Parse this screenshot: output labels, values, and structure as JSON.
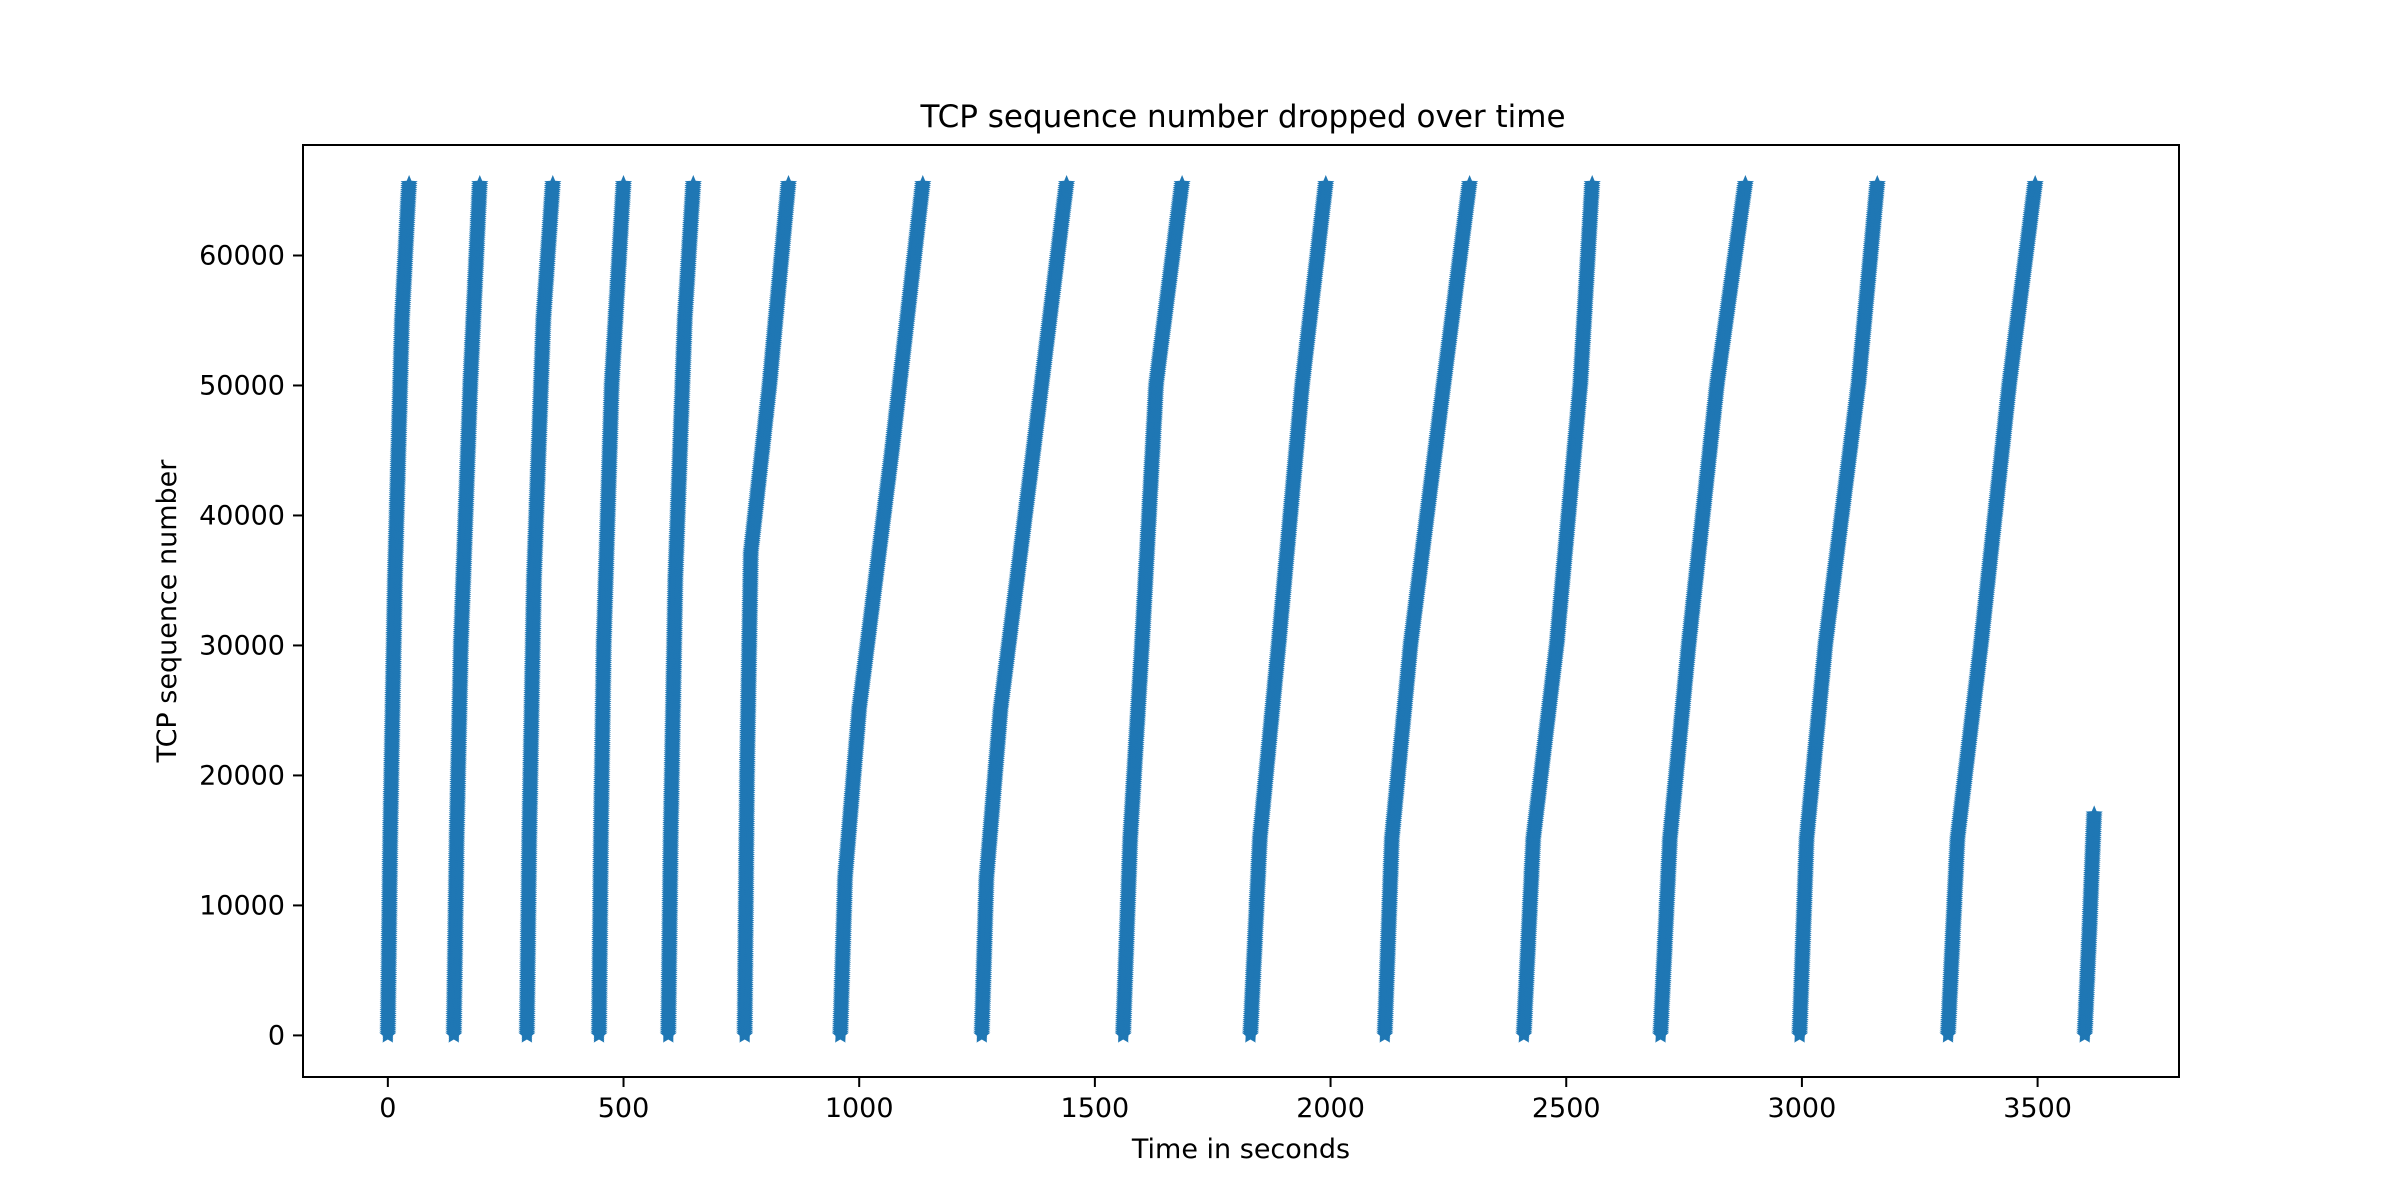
{
  "chart_data": {
    "type": "scatter",
    "title": "TCP sequence number dropped over time",
    "xlabel": "Time in seconds",
    "ylabel": "TCP sequence number",
    "xlim": [
      -180,
      3800
    ],
    "ylim": [
      -3200,
      68500
    ],
    "xticks": [
      0,
      500,
      1000,
      1500,
      2000,
      2500,
      3000,
      3500
    ],
    "xtick_labels": [
      "0",
      "500",
      "1000",
      "1500",
      "2000",
      "2500",
      "3000",
      "3500"
    ],
    "yticks": [
      0,
      10000,
      20000,
      30000,
      40000,
      50000,
      60000
    ],
    "ytick_labels": [
      "0",
      "10000",
      "20000",
      "30000",
      "40000",
      "50000",
      "60000"
    ],
    "grid": false,
    "marker": "star",
    "color": "#1f77b4",
    "series": [
      {
        "values": [
          [
            0,
            0
          ],
          [
            5,
            15000
          ],
          [
            15,
            35000
          ],
          [
            30,
            55000
          ],
          [
            45,
            65500
          ]
        ]
      },
      {
        "values": [
          [
            140,
            0
          ],
          [
            146,
            15000
          ],
          [
            155,
            30000
          ],
          [
            175,
            50000
          ],
          [
            195,
            65500
          ]
        ]
      },
      {
        "values": [
          [
            295,
            0
          ],
          [
            300,
            15000
          ],
          [
            310,
            35000
          ],
          [
            330,
            55000
          ],
          [
            350,
            65500
          ]
        ]
      },
      {
        "values": [
          [
            448,
            0
          ],
          [
            452,
            15000
          ],
          [
            458,
            30000
          ],
          [
            475,
            50000
          ],
          [
            500,
            65500
          ]
        ]
      },
      {
        "values": [
          [
            595,
            0
          ],
          [
            600,
            15000
          ],
          [
            610,
            35000
          ],
          [
            630,
            55000
          ],
          [
            648,
            65500
          ]
        ]
      },
      {
        "values": [
          [
            757,
            0
          ],
          [
            762,
            20000
          ],
          [
            770,
            37000
          ],
          [
            810,
            50000
          ],
          [
            850,
            65500
          ]
        ]
      },
      {
        "values": [
          [
            960,
            0
          ],
          [
            970,
            12000
          ],
          [
            1000,
            25000
          ],
          [
            1070,
            45000
          ],
          [
            1135,
            65500
          ]
        ]
      },
      {
        "values": [
          [
            1260,
            0
          ],
          [
            1270,
            12000
          ],
          [
            1300,
            25000
          ],
          [
            1370,
            45000
          ],
          [
            1440,
            65500
          ]
        ]
      },
      {
        "values": [
          [
            1560,
            0
          ],
          [
            1575,
            15000
          ],
          [
            1600,
            30000
          ],
          [
            1630,
            50000
          ],
          [
            1685,
            65500
          ]
        ]
      },
      {
        "values": [
          [
            1830,
            0
          ],
          [
            1850,
            15000
          ],
          [
            1890,
            30000
          ],
          [
            1940,
            50000
          ],
          [
            1990,
            65500
          ]
        ]
      },
      {
        "values": [
          [
            2115,
            0
          ],
          [
            2130,
            15000
          ],
          [
            2170,
            30000
          ],
          [
            2240,
            50000
          ],
          [
            2295,
            65500
          ]
        ]
      },
      {
        "values": [
          [
            2410,
            0
          ],
          [
            2430,
            15000
          ],
          [
            2480,
            30000
          ],
          [
            2530,
            50000
          ],
          [
            2555,
            65500
          ]
        ]
      },
      {
        "values": [
          [
            2700,
            0
          ],
          [
            2720,
            15000
          ],
          [
            2760,
            30000
          ],
          [
            2820,
            50000
          ],
          [
            2880,
            65500
          ]
        ]
      },
      {
        "values": [
          [
            2995,
            0
          ],
          [
            3010,
            15000
          ],
          [
            3050,
            30000
          ],
          [
            3120,
            50000
          ],
          [
            3160,
            65500
          ]
        ]
      },
      {
        "values": [
          [
            3310,
            0
          ],
          [
            3330,
            15000
          ],
          [
            3380,
            30000
          ],
          [
            3440,
            50000
          ],
          [
            3495,
            65500
          ]
        ]
      },
      {
        "values": [
          [
            3600,
            0
          ],
          [
            3610,
            8000
          ],
          [
            3620,
            17000
          ]
        ]
      }
    ]
  }
}
